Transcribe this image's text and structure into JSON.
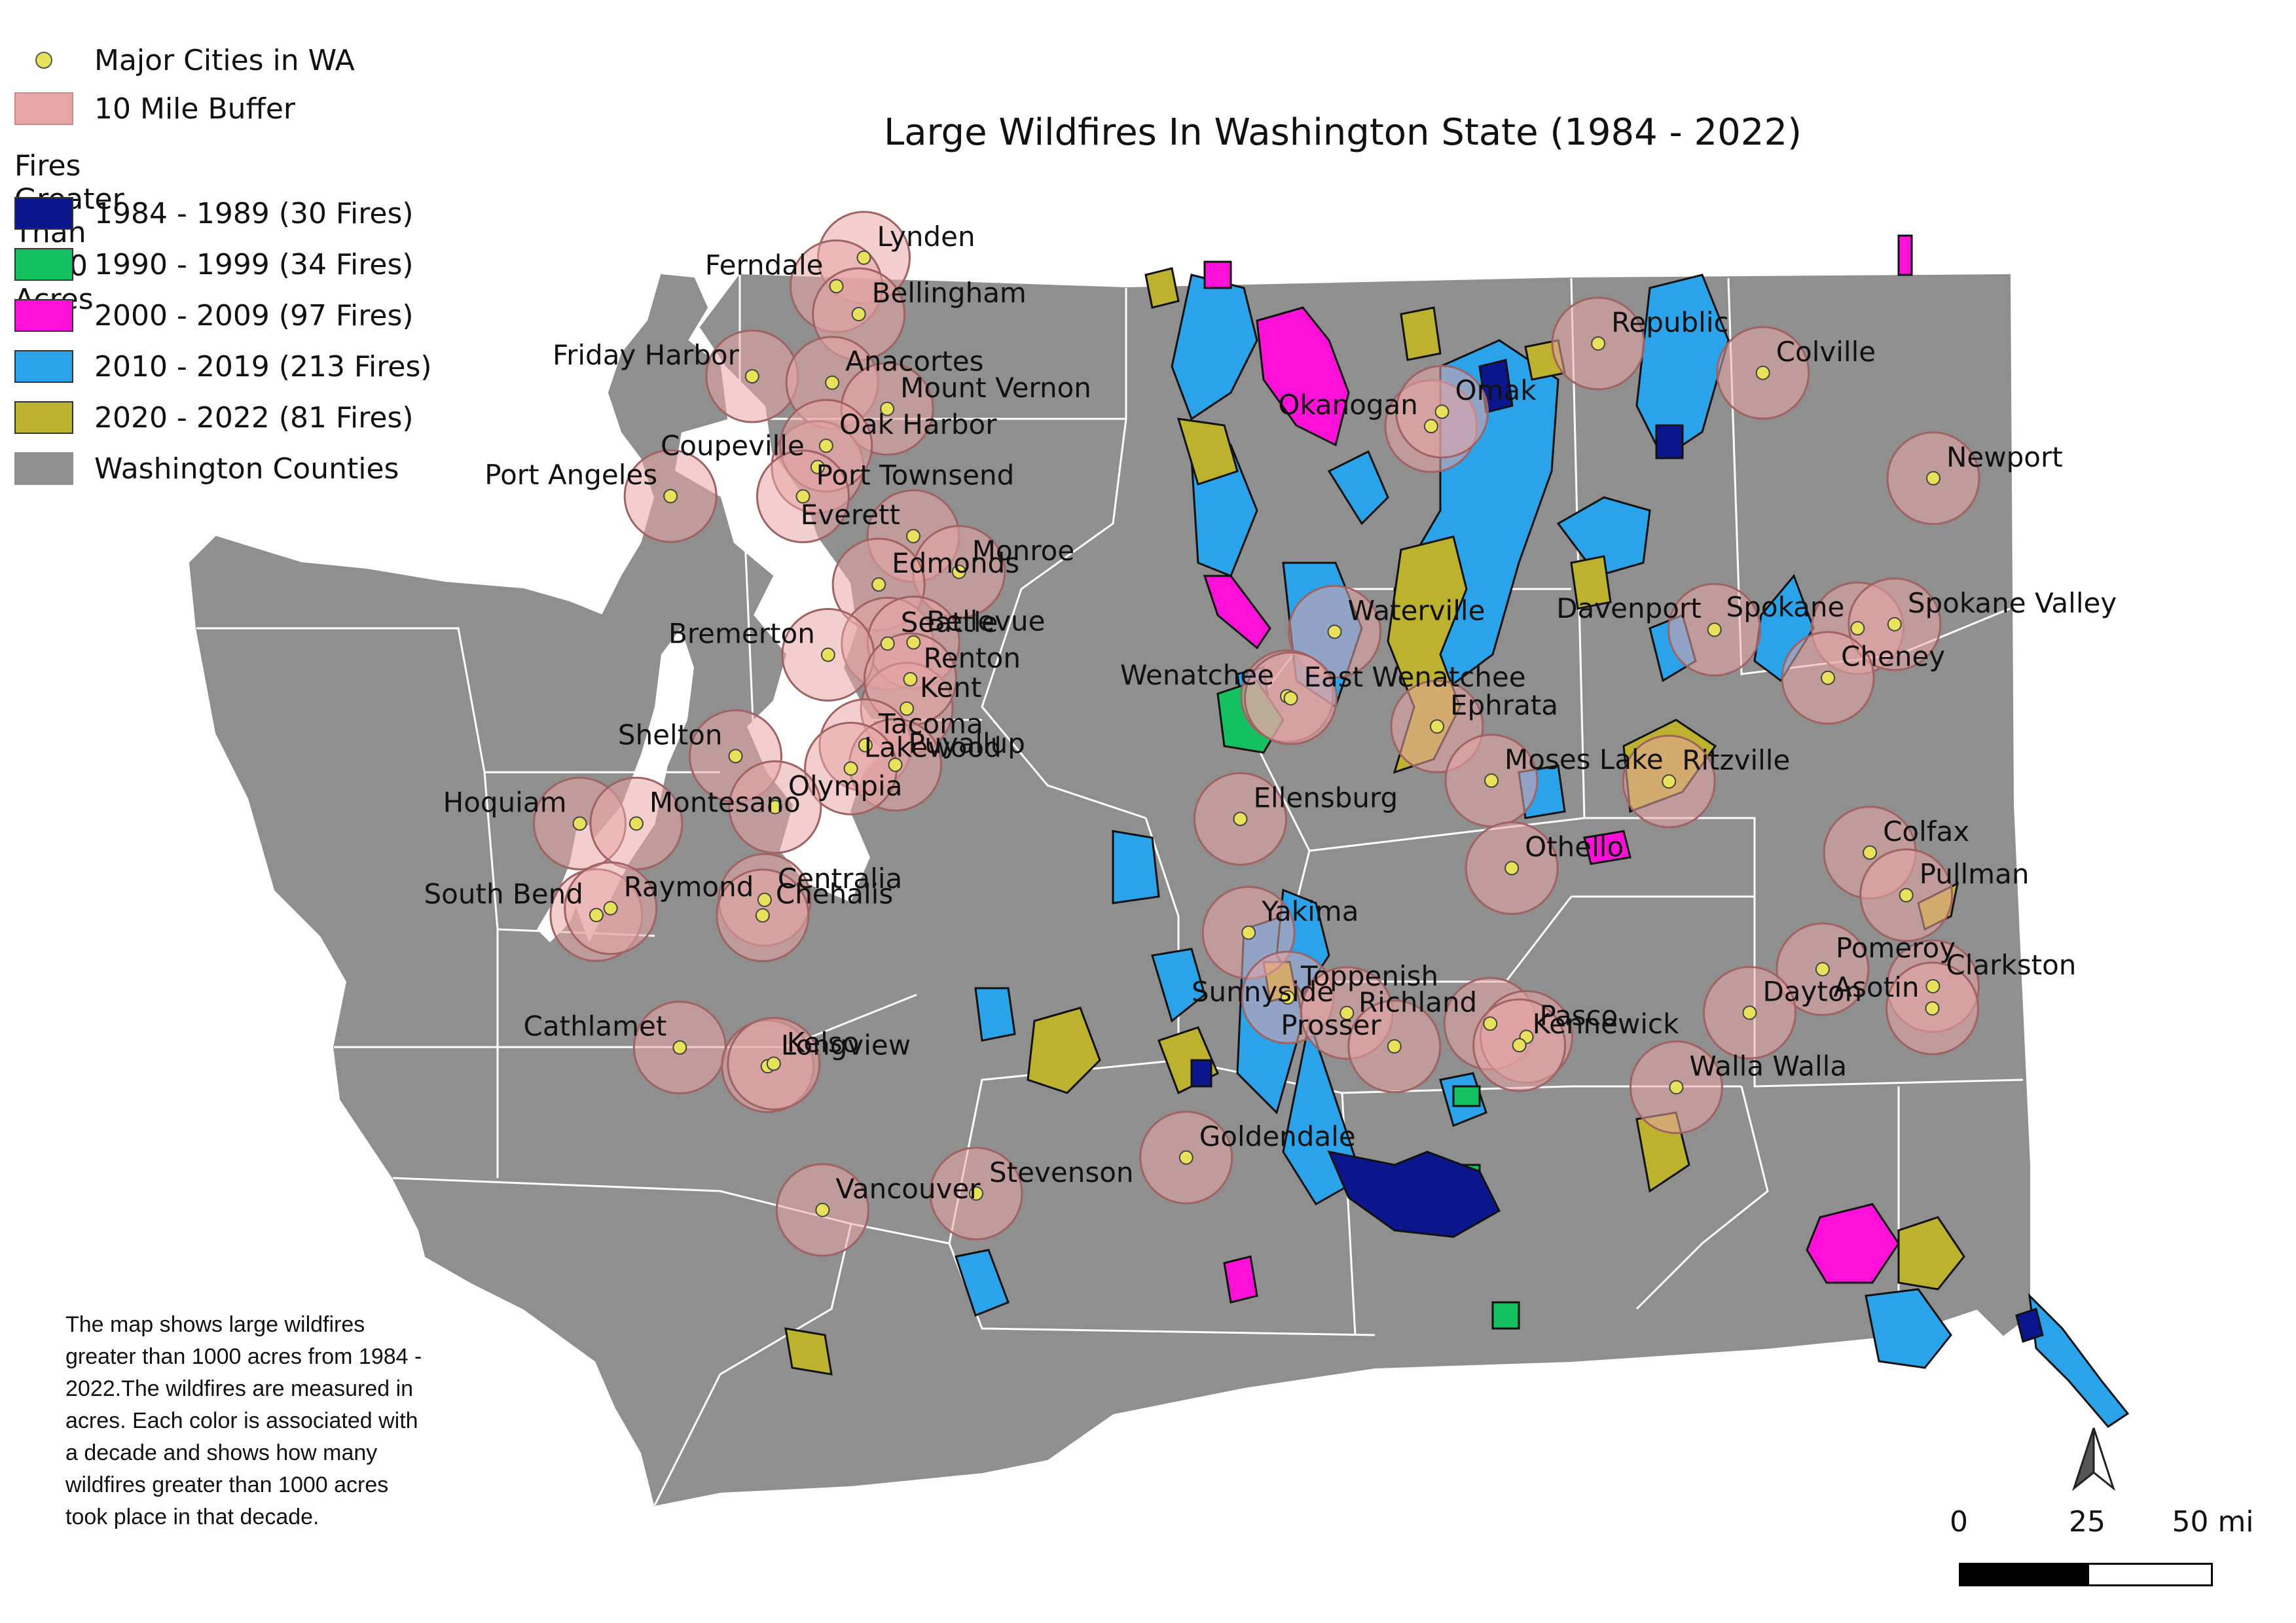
{
  "title": "Large Wildfires In Washington State (1984 - 2022)",
  "legend": {
    "cities_label": "Major Cities in WA",
    "buffer_label": "10 Mile Buffer",
    "fires_heading": "Fires Greater Than 1000 Acres",
    "decades": [
      {
        "label": "1984 - 1989 (30 Fires)",
        "color": "#0b168c"
      },
      {
        "label": "1990 - 1999 (34 Fires)",
        "color": "#14c160"
      },
      {
        "label": "2000 - 2009 (97 Fires)",
        "color": "#ff10d8"
      },
      {
        "label": "2010 - 2019 (213 Fires)",
        "color": "#2aa3ea"
      },
      {
        "label": "2020 - 2022 (81 Fires)",
        "color": "#bdb22e"
      }
    ],
    "counties_label": "Washington Counties",
    "county_color": "#8f8f8f",
    "buffer_color": "#e7a6a6",
    "city_color": "#e8e25a"
  },
  "description": "The map shows large wildfires greater than 1000 acres from 1984 - 2022.The wildfires are measured in acres. Each color is associated with a decade and shows how many wildfires greater than 1000 acres took place in that decade.",
  "scale": {
    "labels": [
      "0",
      "25",
      "50 mi"
    ]
  },
  "north_arrow": "north-arrow-icon",
  "cities": [
    {
      "name": "Lynden",
      "lat": 48.946,
      "lon": -122.452
    },
    {
      "name": "Ferndale",
      "lat": 48.847,
      "lon": -122.591
    },
    {
      "name": "Bellingham",
      "lat": 48.75,
      "lon": -122.478
    },
    {
      "name": "Friday Harbor",
      "lat": 48.534,
      "lon": -123.017
    },
    {
      "name": "Anacortes",
      "lat": 48.512,
      "lon": -122.612
    },
    {
      "name": "Mount Vernon",
      "lat": 48.421,
      "lon": -122.334
    },
    {
      "name": "Coupeville",
      "lat": 48.219,
      "lon": -122.686
    },
    {
      "name": "Oak Harbor",
      "lat": 48.293,
      "lon": -122.643
    },
    {
      "name": "Port Angeles",
      "lat": 48.118,
      "lon": -123.43
    },
    {
      "name": "Port Townsend",
      "lat": 48.117,
      "lon": -122.76
    },
    {
      "name": "Everett",
      "lat": 47.979,
      "lon": -122.202
    },
    {
      "name": "Monroe",
      "lat": 47.855,
      "lon": -121.971
    },
    {
      "name": "Edmonds",
      "lat": 47.811,
      "lon": -122.377
    },
    {
      "name": "Seattle",
      "lat": 47.606,
      "lon": -122.332
    },
    {
      "name": "Bellevue",
      "lat": 47.61,
      "lon": -122.201
    },
    {
      "name": "Bremerton",
      "lat": 47.567,
      "lon": -122.633
    },
    {
      "name": "Kent",
      "lat": 47.38,
      "lon": -122.235
    },
    {
      "name": "Renton",
      "lat": 47.482,
      "lon": -122.217
    },
    {
      "name": "Tacoma",
      "lat": 47.253,
      "lon": -122.444
    },
    {
      "name": "Puyallup",
      "lat": 47.185,
      "lon": -122.293
    },
    {
      "name": "Lakewood",
      "lat": 47.172,
      "lon": -122.518
    },
    {
      "name": "Shelton",
      "lat": 47.215,
      "lon": -123.101
    },
    {
      "name": "Olympia",
      "lat": 47.038,
      "lon": -122.901
    },
    {
      "name": "Hoquiam",
      "lat": 46.981,
      "lon": -123.889
    },
    {
      "name": "Montesano",
      "lat": 46.981,
      "lon": -123.603
    },
    {
      "name": "South Bend",
      "lat": 46.663,
      "lon": -123.805
    },
    {
      "name": "Raymond",
      "lat": 46.687,
      "lon": -123.733
    },
    {
      "name": "Centralia",
      "lat": 46.716,
      "lon": -122.954
    },
    {
      "name": "Chehalis",
      "lat": 46.662,
      "lon": -122.964
    },
    {
      "name": "Cathlamet",
      "lat": 46.203,
      "lon": -123.383
    },
    {
      "name": "Longview",
      "lat": 46.138,
      "lon": -122.938
    },
    {
      "name": "Kelso",
      "lat": 46.147,
      "lon": -122.908
    },
    {
      "name": "Vancouver",
      "lat": 45.639,
      "lon": -122.661
    },
    {
      "name": "Stevenson",
      "lat": 45.696,
      "lon": -121.884
    },
    {
      "name": "Republic",
      "lat": 48.648,
      "lon": -118.738
    },
    {
      "name": "Colville",
      "lat": 48.546,
      "lon": -117.905
    },
    {
      "name": "Okanogan",
      "lat": 48.361,
      "lon": -119.583
    },
    {
      "name": "Omak",
      "lat": 48.411,
      "lon": -119.528
    },
    {
      "name": "Newport",
      "lat": 48.18,
      "lon": -117.043
    },
    {
      "name": "Waterville",
      "lat": 47.647,
      "lon": -120.071
    },
    {
      "name": "Davenport",
      "lat": 47.654,
      "lon": -118.15
    },
    {
      "name": "Spokane",
      "lat": 47.659,
      "lon": -117.426
    },
    {
      "name": "Spokane Valley",
      "lat": 47.673,
      "lon": -117.239
    },
    {
      "name": "Cheney",
      "lat": 47.487,
      "lon": -117.576
    },
    {
      "name": "Wenatchee",
      "lat": 47.423,
      "lon": -120.311
    },
    {
      "name": "East Wenatchee",
      "lat": 47.416,
      "lon": -120.293
    },
    {
      "name": "Ephrata",
      "lat": 47.318,
      "lon": -119.553
    },
    {
      "name": "Moses Lake",
      "lat": 47.13,
      "lon": -119.278
    },
    {
      "name": "Ritzville",
      "lat": 47.127,
      "lon": -118.38
    },
    {
      "name": "Ellensburg",
      "lat": 46.997,
      "lon": -120.548
    },
    {
      "name": "Othello",
      "lat": 46.826,
      "lon": -119.175
    },
    {
      "name": "Colfax",
      "lat": 46.88,
      "lon": -117.364
    },
    {
      "name": "Pullman",
      "lat": 46.732,
      "lon": -117.18
    },
    {
      "name": "Yakima",
      "lat": 46.602,
      "lon": -120.506
    },
    {
      "name": "Pomeroy",
      "lat": 46.475,
      "lon": -117.603
    },
    {
      "name": "Clarkston",
      "lat": 46.416,
      "lon": -117.045
    },
    {
      "name": "Asotin",
      "lat": 46.339,
      "lon": -117.048
    },
    {
      "name": "Toppenish",
      "lat": 46.377,
      "lon": -120.308
    },
    {
      "name": "Dayton",
      "lat": 46.324,
      "lon": -117.972
    },
    {
      "name": "Richland",
      "lat": 46.286,
      "lon": -119.284
    },
    {
      "name": "Pasco",
      "lat": 46.24,
      "lon": -119.101
    },
    {
      "name": "Sunnyside",
      "lat": 46.323,
      "lon": -120.009
    },
    {
      "name": "Kennewick",
      "lat": 46.211,
      "lon": -119.137
    },
    {
      "name": "Prosser",
      "lat": 46.207,
      "lon": -119.769
    },
    {
      "name": "Walla Walla",
      "lat": 46.065,
      "lon": -118.343
    },
    {
      "name": "Goldendale",
      "lat": 45.821,
      "lon": -120.822
    }
  ]
}
